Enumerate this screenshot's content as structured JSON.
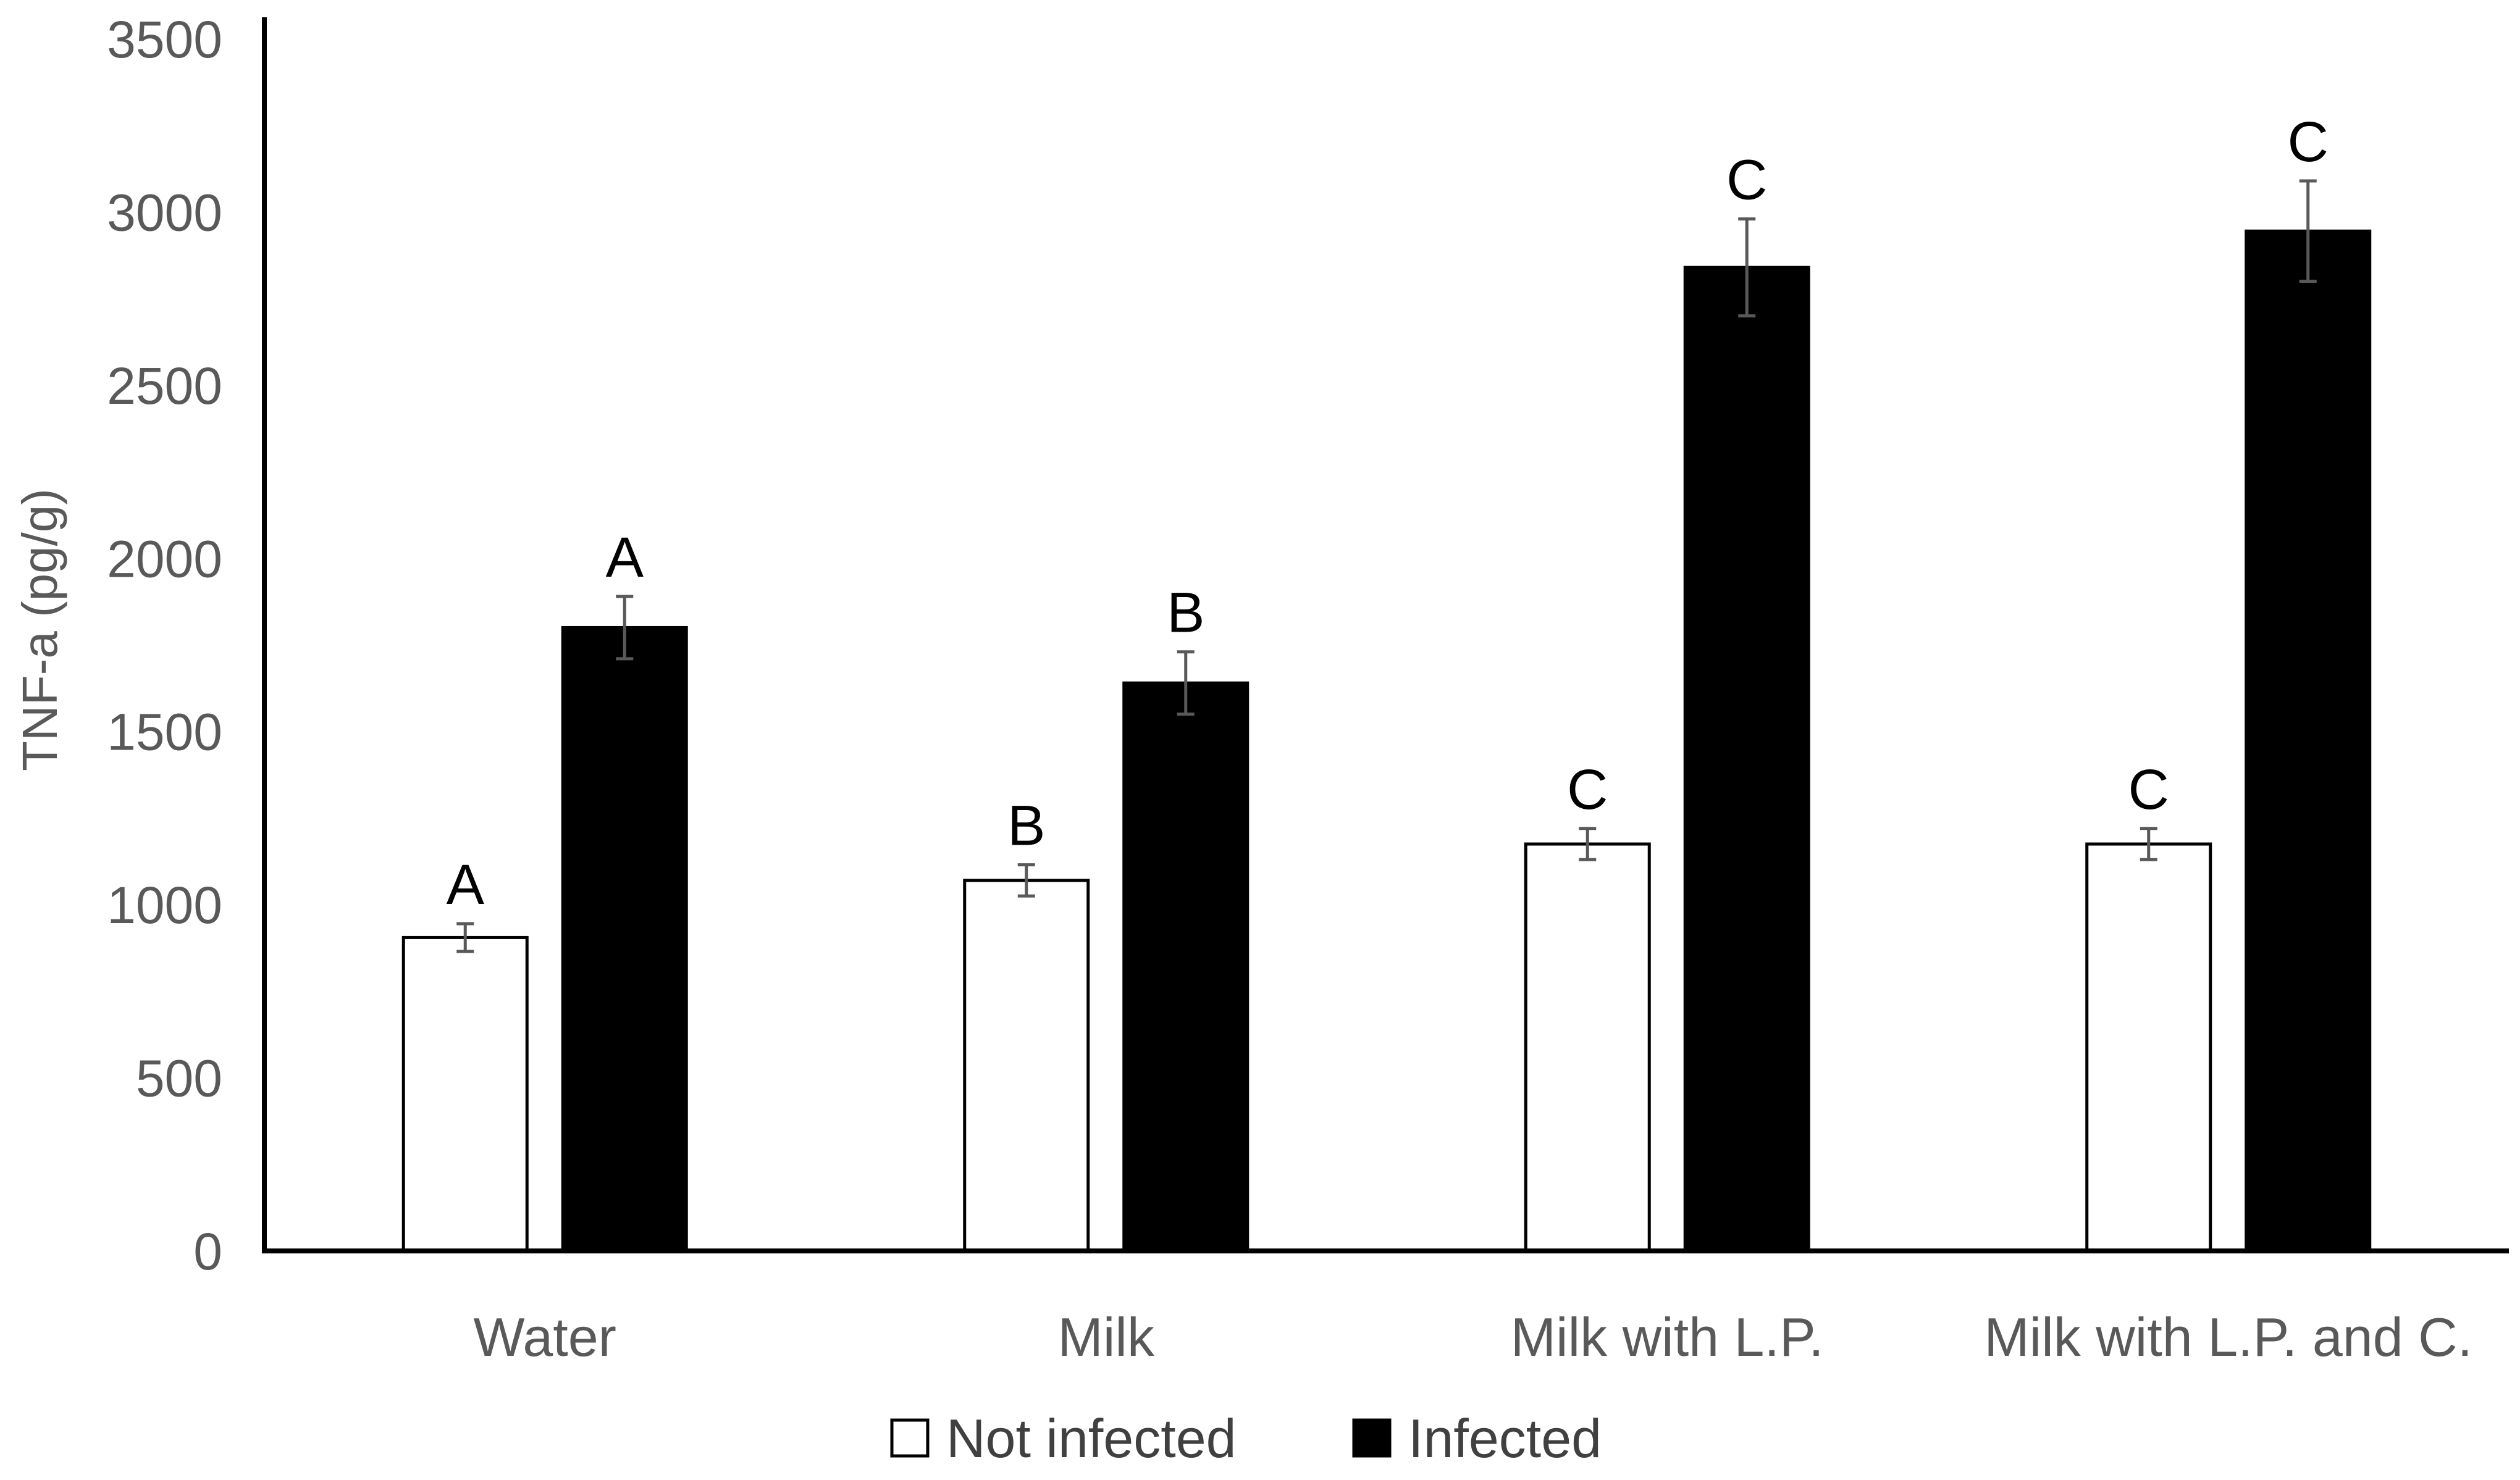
{
  "chart_data": {
    "type": "bar",
    "title": "",
    "xlabel": "",
    "ylabel": "TNF-a (pg/g)",
    "ylim": [
      0,
      3500
    ],
    "yticks": [
      0,
      500,
      1000,
      1500,
      2000,
      2500,
      3000,
      3500
    ],
    "grid": false,
    "legend_position": "bottom",
    "categories": [
      "Water",
      "Milk",
      "Milk with L.P.",
      "Milk with L.P. and C."
    ],
    "series": [
      {
        "name": "Not infected",
        "fill": "#ffffff",
        "stroke": "#000000",
        "values": [
          905,
          1070,
          1175,
          1175
        ],
        "errors": [
          40,
          45,
          45,
          45
        ],
        "letters": [
          "A",
          "B",
          "C",
          "C"
        ]
      },
      {
        "name": "Infected",
        "fill": "#000000",
        "stroke": "#000000",
        "values": [
          1800,
          1640,
          2840,
          2945
        ],
        "errors": [
          90,
          90,
          140,
          145
        ],
        "letters": [
          "A",
          "B",
          "C",
          "C"
        ]
      }
    ]
  }
}
